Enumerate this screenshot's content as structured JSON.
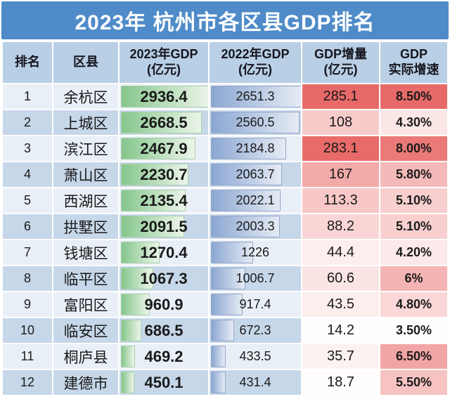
{
  "title": "2023年 杭州市各区县GDP排名",
  "columns": [
    {
      "line1": "排名",
      "line2": ""
    },
    {
      "line1": "区县",
      "line2": ""
    },
    {
      "line1": "2023年GDP",
      "line2": "(亿元)"
    },
    {
      "line1": "2022年GDP",
      "line2": "(亿元)"
    },
    {
      "line1": "GDP增量",
      "line2": "(亿元)"
    },
    {
      "line1": "GDP",
      "line2": "实际增速"
    }
  ],
  "rows": [
    {
      "rank": "1",
      "district": "余杭区",
      "gdp2023": 2936.4,
      "gdp2022": 2651.3,
      "increase": 285.1,
      "growth": "8.50%"
    },
    {
      "rank": "2",
      "district": "上城区",
      "gdp2023": 2668.5,
      "gdp2022": 2560.5,
      "increase": 108,
      "growth": "4.30%"
    },
    {
      "rank": "3",
      "district": "滨江区",
      "gdp2023": 2467.9,
      "gdp2022": 2184.8,
      "increase": 283.1,
      "growth": "8.00%"
    },
    {
      "rank": "4",
      "district": "萧山区",
      "gdp2023": 2230.7,
      "gdp2022": 2063.7,
      "increase": 167,
      "growth": "5.80%"
    },
    {
      "rank": "5",
      "district": "西湖区",
      "gdp2023": 2135.4,
      "gdp2022": 2022.1,
      "increase": 113.3,
      "growth": "5.10%"
    },
    {
      "rank": "6",
      "district": "拱墅区",
      "gdp2023": 2091.5,
      "gdp2022": 2003.3,
      "increase": 88.2,
      "growth": "5.10%"
    },
    {
      "rank": "7",
      "district": "钱塘区",
      "gdp2023": 1270.4,
      "gdp2022": 1226,
      "increase": 44.4,
      "growth": "4.20%"
    },
    {
      "rank": "8",
      "district": "临平区",
      "gdp2023": 1067.3,
      "gdp2022": 1006.7,
      "increase": 60.6,
      "growth": "6%"
    },
    {
      "rank": "9",
      "district": "富阳区",
      "gdp2023": 960.9,
      "gdp2022": 917.4,
      "increase": 43.5,
      "growth": "4.80%"
    },
    {
      "rank": "10",
      "district": "临安区",
      "gdp2023": 686.5,
      "gdp2022": 672.3,
      "increase": 14.2,
      "growth": "3.50%"
    },
    {
      "rank": "11",
      "district": "桐庐县",
      "gdp2023": 469.2,
      "gdp2022": 433.5,
      "increase": 35.7,
      "growth": "6.50%"
    },
    {
      "rank": "12",
      "district": "建德市",
      "gdp2023": 450.1,
      "gdp2022": 431.4,
      "increase": 18.7,
      "growth": "5.50%"
    }
  ],
  "colors": {
    "title_bar": "#4f8bc8",
    "header_bg": "#b9cfe5",
    "row_odd": "#e9eff7",
    "row_even": "#c6d7e9",
    "green_bar_from": "#85c68c",
    "green_bar_to": "#ecf5e9",
    "blue_bar_from": "#8ba7d2",
    "blue_bar_to": "#e6ebf4",
    "scale_min": "#fffefe",
    "scale_max": "#e86a68"
  },
  "chart_data": {
    "type": "table",
    "title": "2023年 杭州市各区县GDP排名",
    "columns": [
      "排名",
      "区县",
      "2023年GDP(亿元)",
      "2022年GDP(亿元)",
      "GDP增量(亿元)",
      "GDP实际增速"
    ],
    "rows": [
      [
        1,
        "余杭区",
        2936.4,
        2651.3,
        285.1,
        "8.50%"
      ],
      [
        2,
        "上城区",
        2668.5,
        2560.5,
        108,
        "4.30%"
      ],
      [
        3,
        "滨江区",
        2467.9,
        2184.8,
        283.1,
        "8.00%"
      ],
      [
        4,
        "萧山区",
        2230.7,
        2063.7,
        167,
        "5.80%"
      ],
      [
        5,
        "西湖区",
        2135.4,
        2022.1,
        113.3,
        "5.10%"
      ],
      [
        6,
        "拱墅区",
        2091.5,
        2003.3,
        88.2,
        "5.10%"
      ],
      [
        7,
        "钱塘区",
        1270.4,
        1226,
        44.4,
        "4.20%"
      ],
      [
        8,
        "临平区",
        1067.3,
        1006.7,
        60.6,
        "6%"
      ],
      [
        9,
        "富阳区",
        960.9,
        917.4,
        43.5,
        "4.80%"
      ],
      [
        10,
        "临安区",
        686.5,
        672.3,
        14.2,
        "3.50%"
      ],
      [
        11,
        "桐庐县",
        469.2,
        433.5,
        35.7,
        "6.50%"
      ],
      [
        12,
        "建德市",
        450.1,
        431.4,
        18.7,
        "5.50%"
      ]
    ],
    "notes": "2023年GDP列含绿色数据条(按值比例), 2022年GDP列含蓝色数据条, GDP增量与实际增速列为白到红色阶(值越大越红)"
  }
}
